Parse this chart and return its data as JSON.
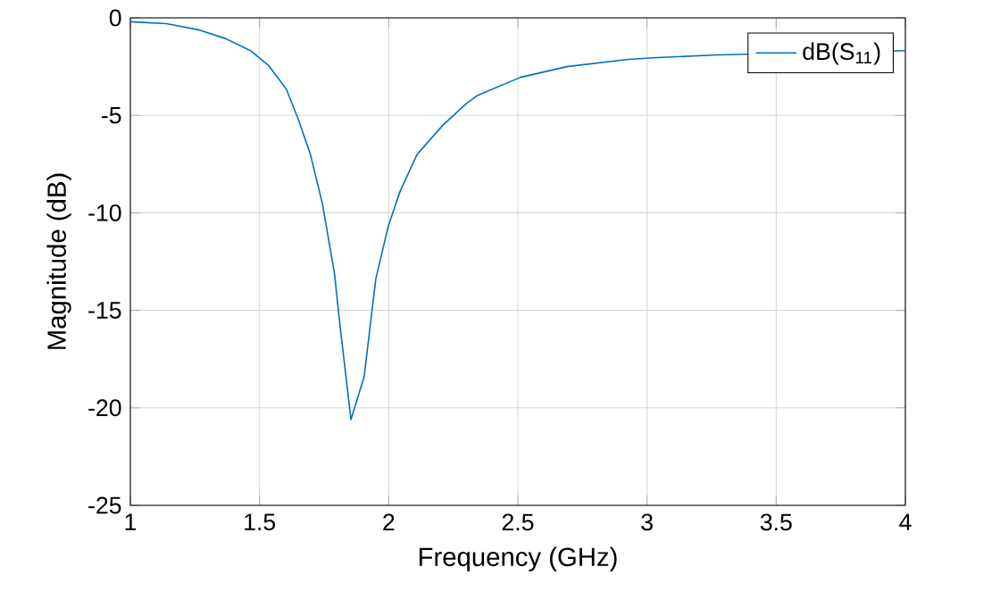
{
  "chart_data": {
    "type": "line",
    "xlabel": "Frequency (GHz)",
    "ylabel": "Magnitude (dB)",
    "xlim": [
      1,
      4
    ],
    "ylim": [
      -25,
      0
    ],
    "xticks": [
      1,
      1.5,
      2,
      2.5,
      3,
      3.5,
      4
    ],
    "yticks": [
      -25,
      -20,
      -15,
      -10,
      -5,
      0
    ],
    "grid": true,
    "legend": "top right",
    "series": [
      {
        "name": "dB(S$_{11}$)",
        "color": "#0072bd",
        "x": [
          1.0,
          1.14,
          1.26,
          1.37,
          1.465,
          1.535,
          1.604,
          1.65,
          1.697,
          1.743,
          1.79,
          1.81,
          1.854,
          1.905,
          1.95,
          1.998,
          2.044,
          2.11,
          2.21,
          2.3,
          2.345,
          2.51,
          2.69,
          2.92,
          3.02,
          3.27,
          4.0
        ],
        "values": [
          -0.2,
          -0.3,
          -0.6,
          -1.07,
          -1.68,
          -2.44,
          -3.66,
          -5.2,
          -7.0,
          -9.5,
          -13.1,
          -15.6,
          -20.6,
          -18.4,
          -13.4,
          -10.7,
          -8.9,
          -7.0,
          -5.5,
          -4.4,
          -3.97,
          -3.05,
          -2.5,
          -2.14,
          -2.05,
          -1.9,
          -1.68
        ]
      }
    ]
  }
}
